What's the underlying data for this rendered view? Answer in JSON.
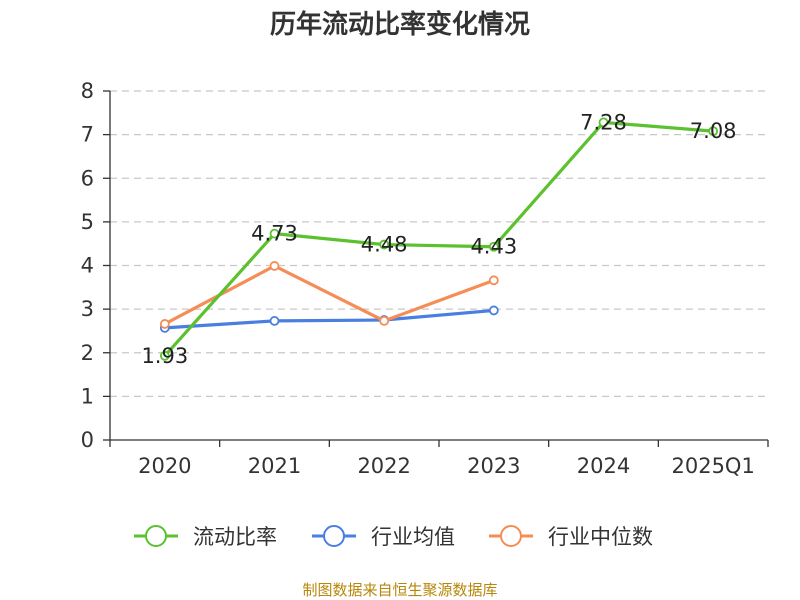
{
  "chart_data": {
    "type": "line",
    "title": "历年流动比率变化情况",
    "categories": [
      "2020",
      "2021",
      "2022",
      "2023",
      "2024",
      "2025Q1"
    ],
    "ylim": [
      0,
      8
    ],
    "yticks": [
      "0",
      "1",
      "2",
      "3",
      "4",
      "5",
      "6",
      "7",
      "8"
    ],
    "grid": true,
    "legend_position": "bottom",
    "series": [
      {
        "name": "流动比率",
        "color": "#5cc12e",
        "values": [
          1.93,
          4.73,
          4.48,
          4.43,
          7.28,
          7.08
        ],
        "labels": [
          "1.93",
          "4.73",
          "4.48",
          "4.43",
          "7.28",
          "7.08"
        ]
      },
      {
        "name": "行业均值",
        "color": "#4a7fe0",
        "values": [
          2.57,
          2.73,
          2.75,
          2.97,
          null,
          null
        ]
      },
      {
        "name": "行业中位数",
        "color": "#f58d57",
        "values": [
          2.66,
          3.99,
          2.73,
          3.66,
          null,
          null
        ]
      }
    ],
    "source": "制图数据来自恒生聚源数据库"
  }
}
